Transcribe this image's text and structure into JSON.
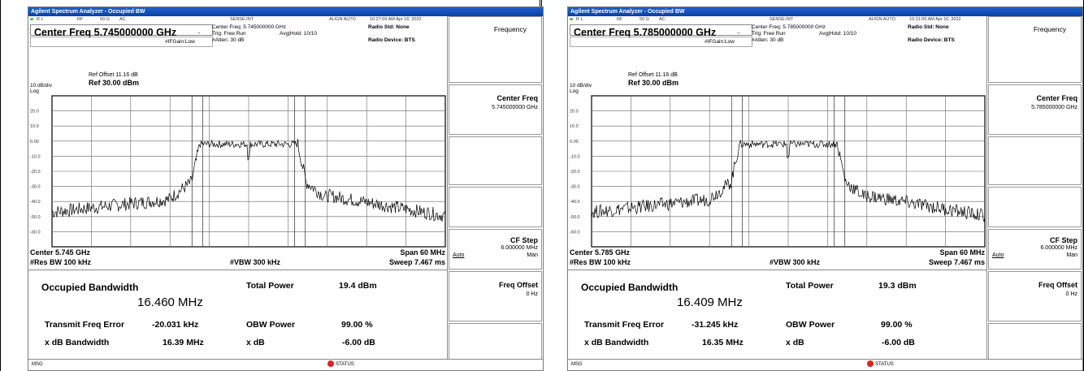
{
  "title": "Agilent Spectrum Analyzer - Occupied BW",
  "status": {
    "rl": "R L",
    "rf": "RF",
    "ohm": "50 Ω",
    "ac": "AC",
    "sense": "SENSE:INT",
    "align": "ALIGN AUTO"
  },
  "labels": {
    "trig": "Trig: Free Run",
    "avg": "Avg|Hold: 10/10",
    "ifgain": "#IFGain:Low",
    "atten": "#Atten: 30 dB",
    "radio_std": "Radio Std: None",
    "radio_dev": "Radio Device: BTS",
    "ref_offset": "Ref Offset 11.16 dB",
    "ref": "Ref 30.00 dBm",
    "div": "10 dB/div",
    "log": "Log",
    "res_bw": "#Res BW  100 kHz",
    "vbw": "#VBW  300 kHz",
    "span": "Span 60 MHz",
    "sweep": "Sweep  7.467 ms",
    "occ_bw": "Occupied Bandwidth",
    "total_power": "Total Power",
    "tfe": "Transmit Freq Error",
    "obw_power": "OBW Power",
    "xdb_bw": "x dB Bandwidth",
    "xdb": "x dB",
    "msg": "MSG",
    "status": "STATUS"
  },
  "y_ticks": [
    "20.0",
    "10.0",
    "0.00",
    "-10.0",
    "-20.0",
    "-30.0",
    "-40.0",
    "-50.0",
    "-60.0"
  ],
  "softkeys": {
    "frequency": "Frequency",
    "center_freq": "Center Freq",
    "cf_step": "CF Step",
    "cf_step_val": "6.000000 MHz",
    "auto": "Auto",
    "man": "Man",
    "freq_offset": "Freq Offset",
    "freq_offset_val": "0 Hz"
  },
  "windows": [
    {
      "time": "10:27:09 AM Apr 16, 2022",
      "center_freq_title": "Center Freq 5.745000000 GHz",
      "center_freq_small": "Center Freq: 5.745000000 GHz",
      "center_bottom": "Center  5.745 GHz",
      "softkey_center_val": "5.745000000 GHz",
      "occ_bw_value": "16.460 MHz",
      "total_power_value": "19.4 dBm",
      "tfe_value": "-20.031 kHz",
      "obw_power_value": "99.00 %",
      "xdb_bw_value": "16.39 MHz",
      "xdb_value": "-6.00 dB"
    },
    {
      "time": "10:31:05 AM Apr 16, 2022",
      "center_freq_title": "Center Freq 5.785000000 GHz",
      "center_freq_small": "Center Freq: 5.785000000 GHz",
      "center_bottom": "Center  5.785 GHz",
      "softkey_center_val": "5.785000000 GHz",
      "occ_bw_value": "16.409 MHz",
      "total_power_value": "19.3 dBm",
      "tfe_value": "-31.245 kHz",
      "obw_power_value": "99.00 %",
      "xdb_bw_value": "16.35 MHz",
      "xdb_value": "-6.00 dB"
    }
  ]
}
